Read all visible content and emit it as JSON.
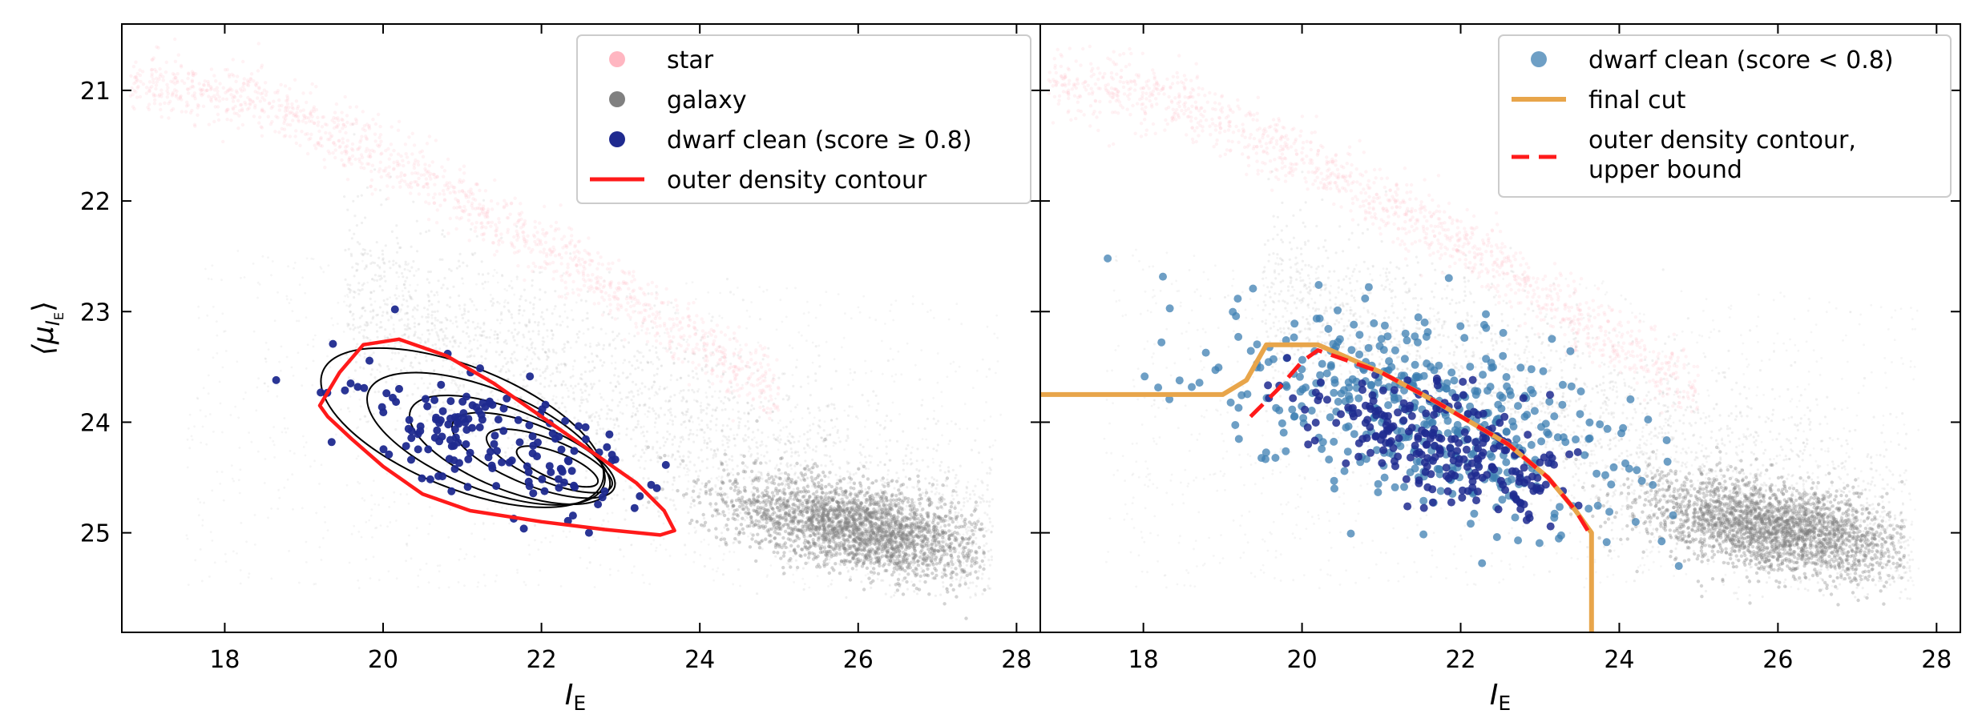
{
  "colors": {
    "star": "#ffb6c1",
    "galaxy": "#808080",
    "dwarf_high": "#1f2a8f",
    "dwarf_low": "#3d7fb1",
    "contour": "#ff1a1a",
    "final_cut": "#e8a54a",
    "kde": "#000000"
  },
  "chart_data": [
    {
      "type": "scatter",
      "panel": "left",
      "xlabel": "I",
      "xlabel_sub": "E",
      "ylabel": "⟨μ",
      "ylabel_sub": "I",
      "ylabel_subsub": "E",
      "ylabel_close": "⟩",
      "xlim": [
        16.7,
        28.3
      ],
      "ylim": [
        25.9,
        20.4
      ],
      "y_inverted": true,
      "x_ticks": [
        18,
        20,
        22,
        24,
        26,
        28
      ],
      "y_ticks": [
        21,
        22,
        23,
        24,
        25
      ],
      "legend_position": "top-right",
      "legend": [
        {
          "label": "star",
          "marker": "circle",
          "color": "#ffb6c1"
        },
        {
          "label": "galaxy",
          "marker": "circle",
          "color": "#808080"
        },
        {
          "label": "dwarf clean (score ≥ 0.8)",
          "marker": "circle",
          "color": "#1f2a8f"
        },
        {
          "label": "outer density contour",
          "marker": "line",
          "color": "#ff1a1a"
        }
      ],
      "star_sequence": {
        "x": [
          16.8,
          18.5,
          20.5,
          22.5,
          24.0,
          25.0
        ],
        "y": [
          20.9,
          21.1,
          21.8,
          22.6,
          23.3,
          23.7
        ],
        "scatter": 0.15
      },
      "galaxy_cloud": {
        "core_center": [
          26.0,
          24.95
        ],
        "core_width": [
          1.5,
          0.35
        ],
        "diffuse_x": [
          17.5,
          27.8
        ],
        "diffuse_y": [
          22.4,
          25.5
        ]
      },
      "outer_density_contour": {
        "x": [
          19.2,
          19.45,
          19.75,
          20.2,
          20.8,
          21.4,
          22.0,
          22.6,
          23.2,
          23.55,
          23.68,
          23.5,
          22.8,
          22.0,
          21.1,
          20.5,
          20.0,
          19.6,
          19.3,
          19.2
        ],
        "y": [
          23.85,
          23.55,
          23.3,
          23.25,
          23.4,
          23.65,
          23.95,
          24.25,
          24.55,
          24.8,
          24.98,
          25.02,
          24.97,
          24.9,
          24.8,
          24.65,
          24.4,
          24.15,
          23.95,
          23.85
        ]
      },
      "kde_contours": [
        {
          "center": [
            21.0,
            24.05
          ],
          "rx": 1.9,
          "ry": 0.55,
          "angle": 22
        },
        {
          "center": [
            21.3,
            24.15
          ],
          "rx": 1.6,
          "ry": 0.45,
          "angle": 22
        },
        {
          "center": [
            21.6,
            24.25
          ],
          "rx": 1.35,
          "ry": 0.36,
          "angle": 22
        },
        {
          "center": [
            21.9,
            24.3
          ],
          "rx": 1.1,
          "ry": 0.27,
          "angle": 22
        },
        {
          "center": [
            22.1,
            24.35
          ],
          "rx": 0.85,
          "ry": 0.19,
          "angle": 22
        },
        {
          "center": [
            22.2,
            24.4
          ],
          "rx": 0.55,
          "ry": 0.12,
          "angle": 22
        }
      ],
      "dwarf_points": {
        "n": 170,
        "x_range": [
          18.6,
          23.6
        ],
        "y_range": [
          23.0,
          25.0
        ],
        "examples": [
          [
            18.65,
            23.62
          ],
          [
            20.15,
            22.98
          ],
          [
            22.6,
            25.0
          ],
          [
            19.35,
            24.18
          ]
        ]
      }
    },
    {
      "type": "scatter",
      "panel": "right",
      "xlabel": "I",
      "xlabel_sub": "E",
      "xlim": [
        16.7,
        28.3
      ],
      "ylim": [
        25.9,
        20.4
      ],
      "y_inverted": true,
      "x_ticks": [
        18,
        20,
        22,
        24,
        26,
        28
      ],
      "y_ticks": [
        21,
        22,
        23,
        24,
        25
      ],
      "legend_position": "top-right",
      "legend": [
        {
          "label": "dwarf clean (score  < 0.8)",
          "marker": "circle",
          "color": "#3d7fb1"
        },
        {
          "label": "final cut",
          "marker": "line",
          "color": "#e8a54a"
        },
        {
          "label": "outer density contour,",
          "label2": "upper bound",
          "marker": "dashed-line",
          "color": "#ff1a1a"
        }
      ],
      "final_cut": {
        "x": [
          16.7,
          19.0,
          19.3,
          19.55,
          19.8,
          20.2,
          21.0,
          21.7,
          22.6,
          23.1,
          23.45,
          23.65,
          23.65
        ],
        "y": [
          23.75,
          23.75,
          23.62,
          23.3,
          23.3,
          23.3,
          23.55,
          23.82,
          24.2,
          24.5,
          24.8,
          25.0,
          25.9
        ]
      },
      "outer_density_upper": {
        "x": [
          19.35,
          19.7,
          20.0,
          20.2,
          21.0,
          21.7,
          22.6,
          23.1,
          23.45,
          23.62
        ],
        "y": [
          23.95,
          23.7,
          23.45,
          23.35,
          23.55,
          23.82,
          24.2,
          24.5,
          24.8,
          25.0
        ]
      },
      "dwarf_low_points": {
        "n": 470,
        "x_range": [
          17.4,
          24.8
        ],
        "y_range": [
          22.5,
          25.3
        ],
        "examples": [
          [
            17.55,
            22.52
          ],
          [
            24.75,
            25.3
          ]
        ]
      },
      "dwarf_high_points": {
        "n": 260,
        "x_range": [
          19.0,
          23.6
        ],
        "y_range": [
          23.4,
          25.0
        ]
      }
    }
  ]
}
